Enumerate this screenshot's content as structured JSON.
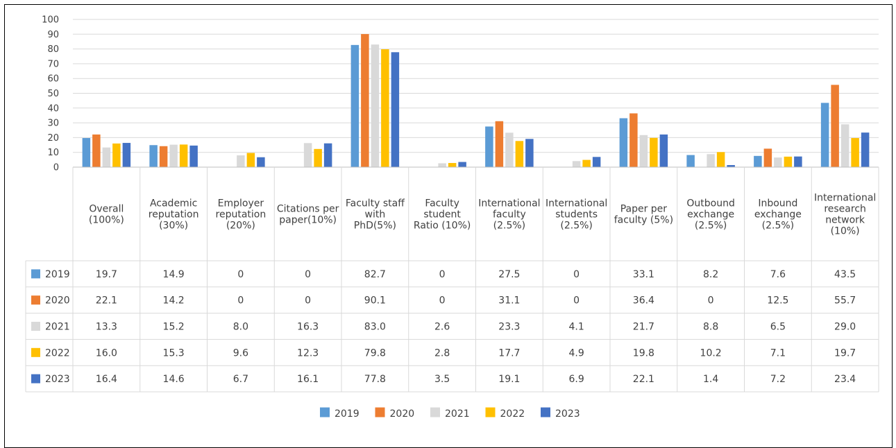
{
  "chart_data": {
    "type": "bar",
    "ylim": [
      0,
      100
    ],
    "yticks": [
      0,
      10,
      20,
      30,
      40,
      50,
      60,
      70,
      80,
      90,
      100
    ],
    "grid": true,
    "legend_position": "bottom",
    "categories": [
      [
        "Overall",
        "(100%)"
      ],
      [
        "Academic",
        "reputation",
        "(30%)"
      ],
      [
        "Employer",
        "reputation",
        "(20%)"
      ],
      [
        "Citations per",
        "paper(10%)"
      ],
      [
        "Faculty staff",
        "with",
        "PhD(5%)"
      ],
      [
        "Faculty",
        "student",
        "Ratio (10%)"
      ],
      [
        "International",
        "faculty",
        "(2.5%)"
      ],
      [
        "International",
        "students",
        "(2.5%)"
      ],
      [
        "Paper per",
        "faculty (5%)"
      ],
      [
        "Outbound",
        "exchange",
        "(2.5%)"
      ],
      [
        "Inbound",
        "exchange",
        "(2.5%)"
      ],
      [
        "International",
        "research",
        "network",
        "(10%)"
      ]
    ],
    "series": [
      {
        "name": "2019",
        "color": "#5B9BD5",
        "values": [
          19.7,
          14.9,
          0,
          0,
          82.7,
          0,
          27.5,
          0,
          33.1,
          8.2,
          7.6,
          43.5
        ],
        "labels": [
          "19.7",
          "14.9",
          "0",
          "0",
          "82.7",
          "0",
          "27.5",
          "0",
          "33.1",
          "8.2",
          "7.6",
          "43.5"
        ]
      },
      {
        "name": "2020",
        "color": "#ED7D31",
        "values": [
          22.1,
          14.2,
          0,
          0,
          90.1,
          0,
          31.1,
          0,
          36.4,
          0,
          12.5,
          55.7
        ],
        "labels": [
          "22.1",
          "14.2",
          "0",
          "0",
          "90.1",
          "0",
          "31.1",
          "0",
          "36.4",
          "0",
          "12.5",
          "55.7"
        ]
      },
      {
        "name": "2021",
        "color": "#D9D9D9",
        "values": [
          13.3,
          15.2,
          8.0,
          16.3,
          83.0,
          2.6,
          23.3,
          4.1,
          21.7,
          8.8,
          6.5,
          29.0
        ],
        "labels": [
          "13.3",
          "15.2",
          "8.0",
          "16.3",
          "83.0",
          "2.6",
          "23.3",
          "4.1",
          "21.7",
          "8.8",
          "6.5",
          "29.0"
        ]
      },
      {
        "name": "2022",
        "color": "#FFC000",
        "values": [
          16.0,
          15.3,
          9.6,
          12.3,
          79.8,
          2.8,
          17.7,
          4.9,
          19.8,
          10.2,
          7.1,
          19.7
        ],
        "labels": [
          "16.0",
          "15.3",
          "9.6",
          "12.3",
          "79.8",
          "2.8",
          "17.7",
          "4.9",
          "19.8",
          "10.2",
          "7.1",
          "19.7"
        ]
      },
      {
        "name": "2023",
        "color": "#4472C4",
        "values": [
          16.4,
          14.6,
          6.7,
          16.1,
          77.8,
          3.5,
          19.1,
          6.9,
          22.1,
          1.4,
          7.2,
          23.4
        ],
        "labels": [
          "16.4",
          "14.6",
          "6.7",
          "16.1",
          "77.8",
          "3.5",
          "19.1",
          "6.9",
          "22.1",
          "1.4",
          "7.2",
          "23.4"
        ]
      }
    ]
  }
}
